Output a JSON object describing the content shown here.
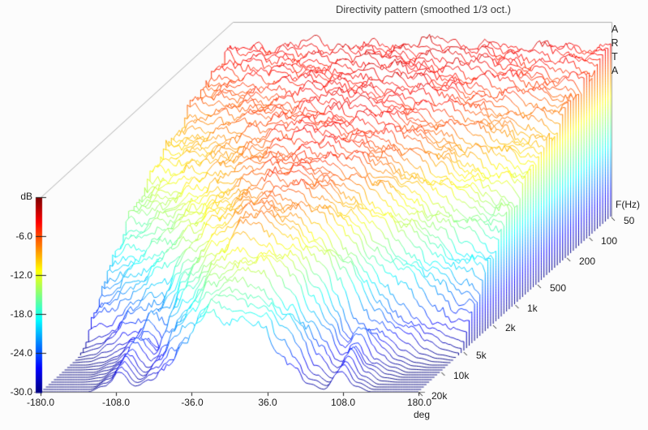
{
  "window": {
    "title": "Directivity pattern (smoothed 1/3 oct.)",
    "watermark_letters": [
      "A",
      "R",
      "T",
      "A"
    ]
  },
  "axes": {
    "db": {
      "label": "dB",
      "ticks": [
        "-6.0",
        "-12.0",
        "-18.0",
        "-24.0",
        "-30.0"
      ],
      "range": [
        -30,
        0
      ]
    },
    "deg": {
      "label": "deg",
      "ticks": [
        "-180.0",
        "-108.0",
        "-36.0",
        "36.0",
        "108.0",
        "180.0"
      ],
      "range": [
        -180,
        180
      ]
    },
    "freq": {
      "label": "F(Hz)",
      "ticks": [
        "50",
        "100",
        "200",
        "500",
        "1k",
        "2k",
        "5k",
        "10k",
        "20k"
      ],
      "range_hz": [
        50,
        20000
      ],
      "scale": "log"
    }
  },
  "colors": {
    "background": "#fcfcfc",
    "colormap": "jet",
    "colormap_top_0db": "#800000",
    "colormap_bottom_minus30db": "#000080",
    "box_line": "#b0b0b0",
    "axis_line": "#777777",
    "tick_mark": "#222222",
    "hidden_line_fill": "#ffffff",
    "text": "#1c1c1c"
  },
  "chart_data": {
    "type": "heatmap",
    "representation": "3d-waterfall directivity plot (level vs angle vs frequency)",
    "title": "Directivity pattern (smoothed 1/3 oct.)",
    "x_label": "deg",
    "y_label": "F(Hz)",
    "z_label": "dB",
    "zlim": [
      -30,
      0
    ],
    "x_range_deg": [
      -180,
      180
    ],
    "y_range_hz": [
      50,
      20000
    ],
    "y_scale": "log",
    "legend": "line color = level in dB, jet colormap: -30 dB (navy) to 0 dB (dark red)",
    "smoothing": "1/3 octave",
    "angles_deg": [
      -180,
      -165,
      -150,
      -135,
      -120,
      -105,
      -90,
      -75,
      -60,
      -45,
      -30,
      -15,
      0,
      15,
      30,
      45,
      60,
      75,
      90,
      105,
      120,
      135,
      150,
      165,
      180
    ],
    "frequencies_hz": [
      50,
      63,
      80,
      100,
      125,
      160,
      200,
      250,
      315,
      400,
      500,
      630,
      800,
      1000,
      1250,
      1600,
      2000,
      2500,
      3150,
      4000,
      5000,
      6300,
      8000,
      10000,
      12500,
      16000,
      20000
    ],
    "levels_db": [
      [
        -4.1,
        -4.0,
        -3.9,
        -3.9,
        -3.8,
        -3.8,
        -3.7,
        -3.7,
        -3.6,
        -3.6,
        -3.5,
        -3.5,
        -3.5,
        -3.5,
        -3.6,
        -3.6,
        -3.7,
        -3.7,
        -3.8,
        -3.8,
        -3.9,
        -3.9,
        -4.0,
        -4.0,
        -4.1
      ],
      [
        -4.4,
        -4.3,
        -4.2,
        -4.1,
        -4.0,
        -3.9,
        -3.8,
        -3.8,
        -3.7,
        -3.6,
        -3.6,
        -3.5,
        -3.5,
        -3.5,
        -3.6,
        -3.7,
        -3.7,
        -3.8,
        -3.9,
        -4.0,
        -4.1,
        -4.1,
        -4.2,
        -4.3,
        -4.4
      ],
      [
        -4.8,
        -4.7,
        -4.5,
        -4.4,
        -4.2,
        -4.1,
        -4.0,
        -3.9,
        -3.8,
        -3.7,
        -3.6,
        -3.6,
        -3.6,
        -3.6,
        -3.6,
        -3.7,
        -3.8,
        -3.9,
        -4.1,
        -4.2,
        -4.4,
        -4.4,
        -4.6,
        -4.7,
        -4.8
      ],
      [
        -5.3,
        -5.2,
        -5.0,
        -4.7,
        -4.5,
        -4.4,
        -4.2,
        -4.0,
        -3.9,
        -3.8,
        -3.7,
        -3.6,
        -3.6,
        -3.6,
        -3.7,
        -3.8,
        -3.9,
        -4.1,
        -4.3,
        -4.4,
        -4.6,
        -4.9,
        -5.1,
        -5.3,
        -5.3
      ],
      [
        -5.9,
        -5.7,
        -5.4,
        -5.2,
        -4.9,
        -4.6,
        -4.4,
        -4.2,
        -4.0,
        -3.9,
        -3.8,
        -3.7,
        -3.7,
        -3.7,
        -3.8,
        -3.9,
        -4.1,
        -4.3,
        -4.5,
        -4.7,
        -5.0,
        -5.3,
        -5.5,
        -5.7,
        -5.9
      ],
      [
        -6.6,
        -6.3,
        -6.0,
        -5.6,
        -5.3,
        -5.0,
        -4.7,
        -4.4,
        -4.2,
        -4.0,
        -3.9,
        -3.8,
        -3.8,
        -3.8,
        -3.9,
        -4.1,
        -4.3,
        -4.5,
        -4.8,
        -5.1,
        -5.4,
        -5.8,
        -6.2,
        -6.4,
        -6.6
      ],
      [
        -7.5,
        -7.1,
        -6.7,
        -6.2,
        -5.8,
        -5.4,
        -5.1,
        -4.7,
        -4.4,
        -4.2,
        -4.0,
        -3.9,
        -3.9,
        -3.9,
        -4.0,
        -4.2,
        -4.4,
        -4.7,
        -5.2,
        -5.5,
        -6.0,
        -6.4,
        -6.9,
        -7.2,
        -7.5
      ],
      [
        -8.4,
        -8.0,
        -7.5,
        -7.0,
        -6.4,
        -5.9,
        -5.4,
        -5.0,
        -4.6,
        -4.4,
        -4.1,
        -4.0,
        -3.9,
        -4.0,
        -4.1,
        -4.3,
        -4.6,
        -5.0,
        -5.5,
        -6.0,
        -6.5,
        -7.1,
        -7.7,
        -8.1,
        -8.4
      ],
      [
        -9.3,
        -8.9,
        -8.3,
        -7.7,
        -7.1,
        -6.4,
        -5.9,
        -5.3,
        -4.9,
        -4.5,
        -4.3,
        -4.1,
        -4.0,
        -4.1,
        -4.2,
        -4.4,
        -4.8,
        -5.3,
        -5.9,
        -6.4,
        -7.1,
        -7.8,
        -8.5,
        -8.9,
        -9.3
      ],
      [
        -10.2,
        -9.8,
        -9.1,
        -8.4,
        -7.7,
        -7.0,
        -6.3,
        -5.7,
        -5.2,
        -4.7,
        -4.4,
        -4.2,
        -4.1,
        -4.2,
        -4.4,
        -4.6,
        -5.1,
        -5.6,
        -6.3,
        -7.0,
        -7.8,
        -8.5,
        -9.3,
        -9.8,
        -10.2
      ],
      [
        -11.1,
        -10.6,
        -9.8,
        -9.1,
        -8.3,
        -7.5,
        -6.8,
        -6.1,
        -5.4,
        -4.9,
        -4.5,
        -4.3,
        -4.2,
        -4.3,
        -4.4,
        -4.8,
        -5.3,
        -6.0,
        -6.8,
        -7.5,
        -8.4,
        -9.2,
        -10.1,
        -10.7,
        -11.1
      ],
      [
        -12.0,
        -11.5,
        -10.7,
        -9.8,
        -8.9,
        -8.0,
        -7.2,
        -6.4,
        -5.7,
        -5.2,
        -4.7,
        -4.4,
        -4.4,
        -4.4,
        -4.6,
        -5.0,
        -5.6,
        -6.3,
        -7.2,
        -8.0,
        -9.0,
        -9.9,
        -10.9,
        -11.6,
        -12.0
      ],
      [
        -13.1,
        -12.5,
        -11.6,
        -10.7,
        -9.7,
        -8.7,
        -7.8,
        -6.9,
        -6.1,
        -5.4,
        -4.9,
        -4.6,
        -4.5,
        -4.6,
        -4.8,
        -5.3,
        -5.9,
        -6.7,
        -7.7,
        -8.7,
        -9.8,
        -10.7,
        -11.8,
        -12.5,
        -13.1
      ],
      [
        -14.3,
        -13.5,
        -12.6,
        -11.6,
        -10.5,
        -9.4,
        -8.4,
        -7.4,
        -6.5,
        -5.7,
        -5.2,
        -4.8,
        -4.7,
        -4.8,
        -5.1,
        -5.5,
        -6.2,
        -7.1,
        -8.2,
        -9.3,
        -10.6,
        -11.6,
        -12.9,
        -13.7,
        -14.3
      ],
      [
        -15.6,
        -14.8,
        -13.8,
        -12.6,
        -11.4,
        -10.2,
        -9.0,
        -8.0,
        -7.0,
        -6.1,
        -5.4,
        -5.0,
        -4.9,
        -5.0,
        -5.3,
        -5.8,
        -6.6,
        -7.6,
        -8.9,
        -10.1,
        -11.5,
        -12.7,
        -14.1,
        -15.0,
        -15.6
      ],
      [
        -17.4,
        -16.5,
        -15.3,
        -14.0,
        -12.6,
        -11.2,
        -9.9,
        -8.7,
        -7.5,
        -6.5,
        -5.8,
        -5.3,
        -5.1,
        -5.2,
        -5.5,
        -6.2,
        -7.1,
        -8.2,
        -9.7,
        -11.1,
        -12.6,
        -14.1,
        -15.6,
        -16.7,
        -17.4
      ],
      [
        -19.2,
        -18.2,
        -16.9,
        -15.4,
        -13.9,
        -12.4,
        -10.8,
        -9.4,
        -8.1,
        -7.0,
        -6.2,
        -5.5,
        -5.3,
        -5.4,
        -5.8,
        -6.5,
        -7.6,
        -8.9,
        -10.6,
        -12.2,
        -13.9,
        -15.5,
        -17.2,
        -18.4,
        -19.2
      ],
      [
        -21.0,
        -19.9,
        -18.6,
        -17.0,
        -15.2,
        -13.5,
        -11.9,
        -10.3,
        -8.9,
        -7.6,
        -6.6,
        -5.9,
        -5.6,
        -5.7,
        -6.2,
        -7.0,
        -8.2,
        -9.8,
        -11.6,
        -13.4,
        -15.2,
        -17.0,
        -18.9,
        -20.2,
        -21.0
      ],
      [
        -23.3,
        -22.1,
        -20.6,
        -18.8,
        -16.9,
        -14.9,
        -13.1,
        -11.3,
        -9.7,
        -8.2,
        -7.1,
        -6.2,
        -5.9,
        -6.1,
        -6.6,
        -7.5,
        -8.9,
        -10.7,
        -12.7,
        -14.7,
        -16.9,
        -18.8,
        -20.9,
        -22.4,
        -23.3
      ],
      [
        -26.0,
        -24.6,
        -22.9,
        -20.8,
        -18.7,
        -16.5,
        -14.4,
        -12.4,
        -10.7,
        -9.0,
        -7.7,
        -6.8,
        -6.4,
        -6.6,
        -7.1,
        -8.2,
        -9.8,
        -11.8,
        -14.2,
        -16.4,
        -18.8,
        -21.1,
        -23.4,
        -25.1,
        -26.0
      ],
      [
        -29.1,
        -28.2,
        -26.4,
        -24.2,
        -22.4,
        -21.5,
        -16.5,
        -13.8,
        -11.7,
        -9.9,
        -8.4,
        -7.4,
        -7.0,
        -7.1,
        -7.9,
        -9.0,
        -10.9,
        -13.4,
        -16.9,
        -21.7,
        -22.8,
        -24.8,
        -26.9,
        -28.4,
        -29.1
      ],
      [
        -30,
        -29.6,
        -28.2,
        -26.4,
        -25.1,
        -23.3,
        -19.7,
        -15.8,
        -13.1,
        -10.8,
        -9.1,
        -6.2,
        -6.6,
        -7.7,
        -8.6,
        -10.3,
        -12.7,
        -15.6,
        -19.7,
        -22.8,
        -24.6,
        -26.9,
        -28.7,
        -29.6,
        -30
      ],
      [
        -30,
        -30,
        -29.6,
        -28.7,
        -26.9,
        -23.7,
        -25.5,
        -18.8,
        -15.4,
        -12.7,
        -10.6,
        -7.0,
        -7.6,
        -8.9,
        -10.0,
        -12.0,
        -14.9,
        -18.8,
        -24.6,
        -24.2,
        -26.9,
        -28.7,
        -29.6,
        -30,
        -30
      ],
      [
        -30,
        -30,
        -30,
        -29.1,
        -27.8,
        -24.2,
        -26.9,
        -21.9,
        -18.3,
        -15.2,
        -12.5,
        -10.9,
        -10.2,
        -10.7,
        -12.2,
        -14.5,
        -17.9,
        -22.4,
        -26.4,
        -24.6,
        -27.8,
        -29.1,
        -30,
        -30,
        -30
      ],
      [
        -30,
        -30,
        -30,
        -29.6,
        -28.2,
        -25.1,
        -27.8,
        -24.6,
        -21.0,
        -17.9,
        -15.0,
        -13.4,
        -12.9,
        -13.4,
        -14.9,
        -17.4,
        -20.8,
        -25.1,
        -27.8,
        -25.1,
        -28.2,
        -29.6,
        -30,
        -30,
        -30
      ],
      [
        -30,
        -30,
        -30,
        -30,
        -28.7,
        -26.0,
        -28.7,
        -26.9,
        -23.7,
        -20.6,
        -17.6,
        -15.6,
        -16.3,
        -16.0,
        -17.6,
        -20.3,
        -23.7,
        -27.3,
        -29.1,
        -26.0,
        -28.7,
        -30,
        -30,
        -30,
        -30
      ],
      [
        -30,
        -30,
        -30,
        -30,
        -29.1,
        -26.9,
        -29.1,
        -28.2,
        -25.5,
        -23.3,
        -20.1,
        -18.1,
        -18.8,
        -18.4,
        -20.1,
        -22.8,
        -25.5,
        -28.7,
        -29.6,
        -26.9,
        -29.1,
        -30,
        -30,
        -30,
        -30
      ]
    ]
  }
}
